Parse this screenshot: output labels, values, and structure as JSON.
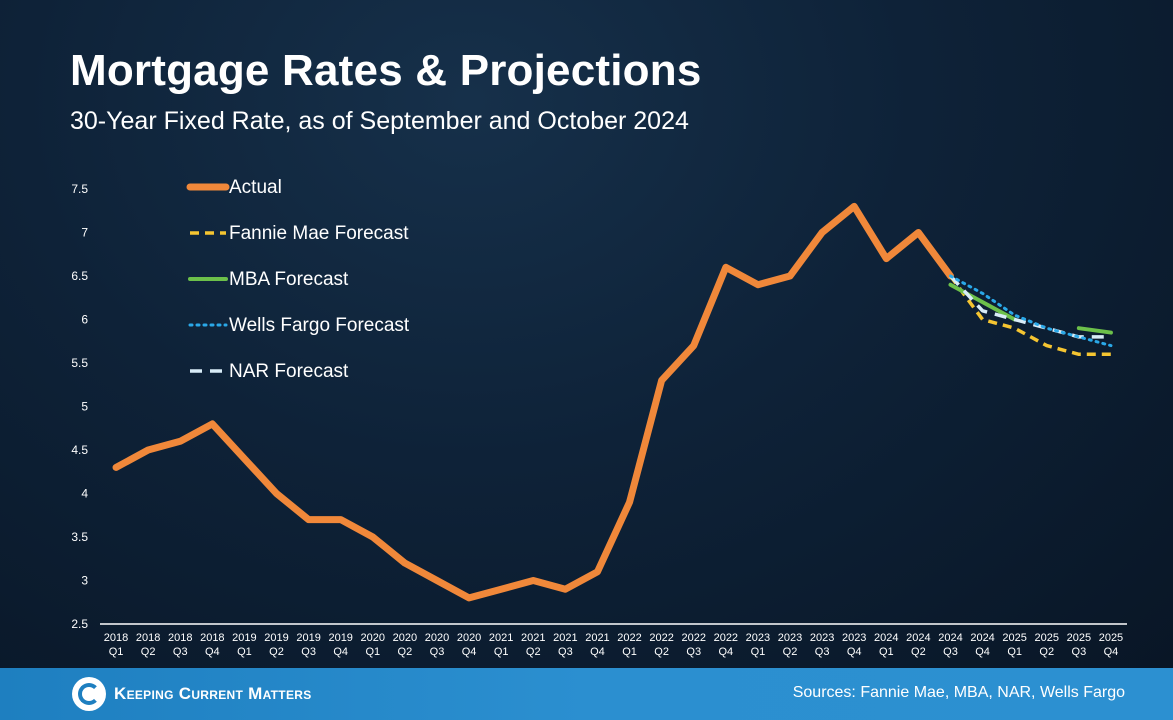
{
  "header": {
    "title": "Mortgage Rates & Projections",
    "subtitle": "30-Year Fixed Rate, as of September and October 2024"
  },
  "footer": {
    "brand": "Keeping Current Matters",
    "sources": "Sources: Fannie Mae, MBA, NAR, Wells Fargo"
  },
  "colors": {
    "actual": "#f0883a",
    "fannie": "#f5c531",
    "mba": "#6cc04a",
    "wells": "#2aa8e8",
    "nar": "#d8ecf7"
  },
  "chart_data": {
    "type": "line",
    "title": "Mortgage Rates & Projections",
    "subtitle": "30-Year Fixed Rate, as of September and October 2024",
    "categories": [
      [
        "2018",
        "Q1"
      ],
      [
        "2018",
        "Q2"
      ],
      [
        "2018",
        "Q3"
      ],
      [
        "2018",
        "Q4"
      ],
      [
        "2019",
        "Q1"
      ],
      [
        "2019",
        "Q2"
      ],
      [
        "2019",
        "Q3"
      ],
      [
        "2019",
        "Q4"
      ],
      [
        "2020",
        "Q1"
      ],
      [
        "2020",
        "Q2"
      ],
      [
        "2020",
        "Q3"
      ],
      [
        "2020",
        "Q4"
      ],
      [
        "2021",
        "Q1"
      ],
      [
        "2021",
        "Q2"
      ],
      [
        "2021",
        "Q3"
      ],
      [
        "2021",
        "Q4"
      ],
      [
        "2022",
        "Q1"
      ],
      [
        "2022",
        "Q2"
      ],
      [
        "2022",
        "Q3"
      ],
      [
        "2022",
        "Q4"
      ],
      [
        "2023",
        "Q1"
      ],
      [
        "2023",
        "Q2"
      ],
      [
        "2023",
        "Q3"
      ],
      [
        "2023",
        "Q4"
      ],
      [
        "2024",
        "Q1"
      ],
      [
        "2024",
        "Q2"
      ],
      [
        "2024",
        "Q3"
      ],
      [
        "2024",
        "Q4"
      ],
      [
        "2025",
        "Q1"
      ],
      [
        "2025",
        "Q2"
      ],
      [
        "2025",
        "Q3"
      ],
      [
        "2025",
        "Q4"
      ]
    ],
    "yticks": [
      "2.5",
      "3",
      "3.5",
      "4",
      "4.5",
      "5",
      "5.5",
      "6",
      "6.5",
      "7",
      "7.5"
    ],
    "ylim": [
      2.5,
      7.5
    ],
    "legend_position": "top-left",
    "series": [
      {
        "name": "Actual",
        "key": "actual",
        "style": "solid-thick",
        "values": [
          4.3,
          4.5,
          4.6,
          4.8,
          4.4,
          4.0,
          3.7,
          3.7,
          3.5,
          3.2,
          3.0,
          2.8,
          2.9,
          3.0,
          2.9,
          3.1,
          3.9,
          5.3,
          5.7,
          6.6,
          6.4,
          6.5,
          7.0,
          7.3,
          6.7,
          7.0,
          6.5,
          null,
          null,
          null,
          null,
          null
        ]
      },
      {
        "name": "Fannie Mae Forecast",
        "key": "fannie",
        "style": "dashed",
        "values": [
          null,
          null,
          null,
          null,
          null,
          null,
          null,
          null,
          null,
          null,
          null,
          null,
          null,
          null,
          null,
          null,
          null,
          null,
          null,
          null,
          null,
          null,
          null,
          null,
          null,
          null,
          6.5,
          6.0,
          5.9,
          5.7,
          5.6,
          5.6
        ]
      },
      {
        "name": "MBA Forecast",
        "key": "mba",
        "style": "solid",
        "values": [
          null,
          null,
          null,
          null,
          null,
          null,
          null,
          null,
          null,
          null,
          null,
          null,
          null,
          null,
          null,
          null,
          null,
          null,
          null,
          null,
          null,
          null,
          null,
          null,
          null,
          null,
          6.4,
          6.2,
          6.0,
          null,
          5.9,
          5.85
        ]
      },
      {
        "name": "Wells Fargo Forecast",
        "key": "wells",
        "style": "dotted",
        "values": [
          null,
          null,
          null,
          null,
          null,
          null,
          null,
          null,
          null,
          null,
          null,
          null,
          null,
          null,
          null,
          null,
          null,
          null,
          null,
          null,
          null,
          null,
          null,
          null,
          null,
          null,
          6.5,
          6.3,
          6.05,
          5.9,
          5.8,
          5.7
        ]
      },
      {
        "name": "NAR Forecast",
        "key": "nar",
        "style": "long-dash",
        "values": [
          null,
          null,
          null,
          null,
          null,
          null,
          null,
          null,
          null,
          null,
          null,
          null,
          null,
          null,
          null,
          null,
          null,
          null,
          null,
          null,
          null,
          null,
          null,
          null,
          null,
          null,
          6.5,
          6.1,
          6.0,
          5.9,
          5.8,
          5.8
        ]
      }
    ]
  }
}
